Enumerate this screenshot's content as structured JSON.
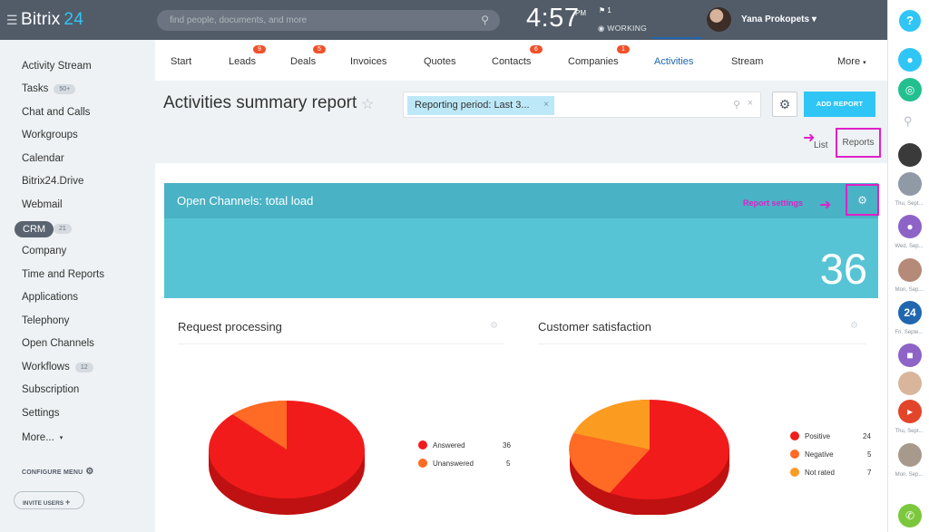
{
  "header": {
    "logo_name": "Bitrix",
    "logo_num": "24",
    "search_placeholder": "find people, documents, and more",
    "time": "4:57",
    "ampm": "PM",
    "flag_count": "1",
    "status": "WORKING",
    "user_name": "Yana Prokopets"
  },
  "sidebar": {
    "items": [
      {
        "label": "Activity Stream"
      },
      {
        "label": "Tasks",
        "count": "50+"
      },
      {
        "label": "Chat and Calls"
      },
      {
        "label": "Workgroups"
      },
      {
        "label": "Calendar"
      },
      {
        "label": "Bitrix24.Drive"
      },
      {
        "label": "Webmail"
      },
      {
        "label": "CRM",
        "count": "21"
      },
      {
        "label": "Company"
      },
      {
        "label": "Time and Reports"
      },
      {
        "label": "Applications"
      },
      {
        "label": "Telephony"
      },
      {
        "label": "Open Channels"
      },
      {
        "label": "Workflows",
        "count": "12"
      },
      {
        "label": "Subscription"
      },
      {
        "label": "Settings"
      },
      {
        "label": "More..."
      }
    ],
    "configure": "CONFIGURE MENU",
    "invite": "INVITE USERS"
  },
  "tabs": [
    {
      "label": "Start"
    },
    {
      "label": "Leads",
      "badge": "9"
    },
    {
      "label": "Deals",
      "badge": "5"
    },
    {
      "label": "Invoices"
    },
    {
      "label": "Quotes"
    },
    {
      "label": "Contacts",
      "badge": "6"
    },
    {
      "label": "Companies",
      "badge": "1"
    },
    {
      "label": "Activities",
      "active": true
    },
    {
      "label": "Stream"
    },
    {
      "label": "More"
    }
  ],
  "page": {
    "title": "Activities summary report",
    "filter_chip": "Reporting period: Last 3...",
    "add_report": "ADD REPORT",
    "list": "List",
    "reports": "Reports"
  },
  "open_channels": {
    "title": "Open Channels: total load",
    "value": "36",
    "annotation": "Report settings"
  },
  "panels": [
    {
      "title": "Request processing",
      "legend": [
        {
          "label": "Answered",
          "value": "36",
          "color": "#f21b1b"
        },
        {
          "label": "Unanswered",
          "value": "5",
          "color": "#ff6a24"
        }
      ]
    },
    {
      "title": "Customer satisfaction",
      "legend": [
        {
          "label": "Positive",
          "value": "24",
          "color": "#f21b1b"
        },
        {
          "label": "Negative",
          "value": "5",
          "color": "#ff6a24"
        },
        {
          "label": "Not rated",
          "value": "7",
          "color": "#fb9c20"
        }
      ]
    }
  ],
  "right_panel": {
    "captions": [
      "Thu, Sept...",
      "Wed, Sep...",
      "Mon, Sep...",
      "Fri, Septe...",
      "Thu, Sept...",
      "Mon, Sep..."
    ],
    "badge_24": "24"
  },
  "colors": {
    "accent": "#2fc6f6",
    "header_bg": "#525c69",
    "active_tab": "#2067b0",
    "annotation": "#e020c8"
  }
}
